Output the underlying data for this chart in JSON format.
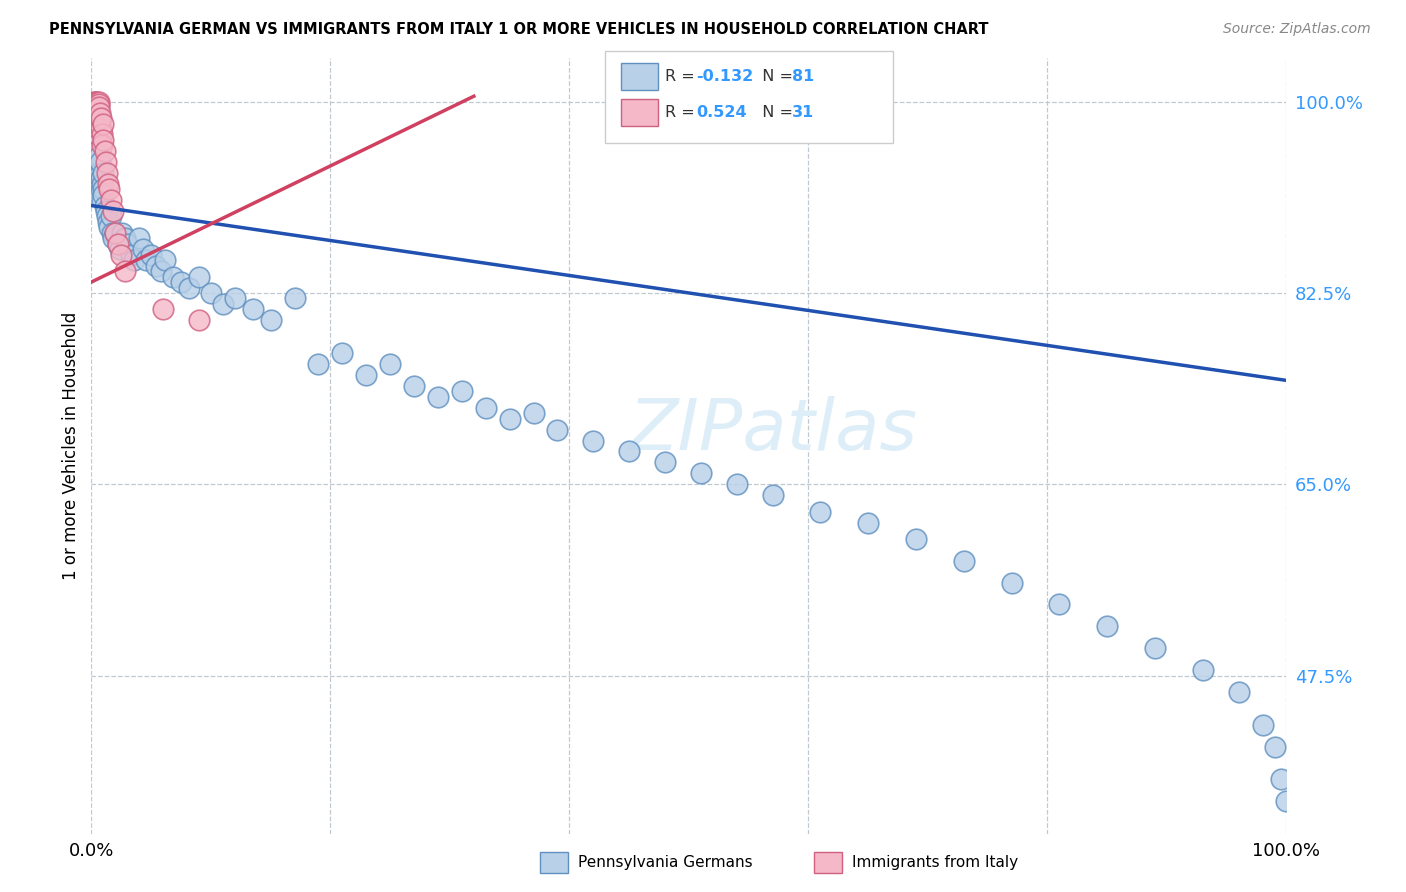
{
  "title": "PENNSYLVANIA GERMAN VS IMMIGRANTS FROM ITALY 1 OR MORE VEHICLES IN HOUSEHOLD CORRELATION CHART",
  "source": "Source: ZipAtlas.com",
  "ylabel": "1 or more Vehicles in Household",
  "ytick_vals": [
    1.0,
    0.825,
    0.65,
    0.475
  ],
  "ytick_labels": [
    "100.0%",
    "82.5%",
    "65.0%",
    "47.5%"
  ],
  "xtick_positions": [
    0.0,
    0.2,
    0.4,
    0.6,
    0.8,
    1.0
  ],
  "xtick_labels": [
    "0.0%",
    "",
    "",
    "",
    "",
    "100.0%"
  ],
  "xrange": [
    0.0,
    1.0
  ],
  "yrange": [
    0.33,
    1.04
  ],
  "blue_color": "#b8d0e8",
  "pink_color": "#f5b8c8",
  "blue_edge": "#6090c0",
  "pink_edge": "#d06080",
  "line_blue": "#2050b0",
  "line_pink": "#d04060",
  "blue_line_x0": 0.0,
  "blue_line_y0": 0.905,
  "blue_line_x1": 1.0,
  "blue_line_y1": 0.745,
  "pink_line_x0": 0.0,
  "pink_line_y0": 0.835,
  "pink_line_x1": 0.32,
  "pink_line_y1": 1.005,
  "watermark_text": "ZIPatlas",
  "legend_r_blue": "-0.132",
  "legend_n_blue": "81",
  "legend_r_pink": "0.524",
  "legend_n_pink": "31",
  "blue_pts_x": [
    0.002,
    0.003,
    0.004,
    0.004,
    0.005,
    0.005,
    0.006,
    0.006,
    0.007,
    0.007,
    0.008,
    0.008,
    0.009,
    0.009,
    0.01,
    0.01,
    0.01,
    0.011,
    0.012,
    0.013,
    0.014,
    0.015,
    0.016,
    0.017,
    0.018,
    0.02,
    0.022,
    0.024,
    0.026,
    0.028,
    0.03,
    0.033,
    0.036,
    0.04,
    0.043,
    0.046,
    0.05,
    0.054,
    0.058,
    0.062,
    0.068,
    0.075,
    0.082,
    0.09,
    0.1,
    0.11,
    0.12,
    0.135,
    0.15,
    0.17,
    0.19,
    0.21,
    0.23,
    0.25,
    0.27,
    0.29,
    0.31,
    0.33,
    0.35,
    0.37,
    0.39,
    0.42,
    0.45,
    0.48,
    0.51,
    0.54,
    0.57,
    0.61,
    0.65,
    0.69,
    0.73,
    0.77,
    0.81,
    0.85,
    0.89,
    0.93,
    0.96,
    0.98,
    0.99,
    0.995,
    1.0
  ],
  "blue_pts_y": [
    0.94,
    0.935,
    0.95,
    0.96,
    0.945,
    0.955,
    0.94,
    0.95,
    0.935,
    0.945,
    0.93,
    0.92,
    0.925,
    0.91,
    0.935,
    0.92,
    0.915,
    0.905,
    0.9,
    0.895,
    0.89,
    0.885,
    0.895,
    0.88,
    0.875,
    0.88,
    0.87,
    0.865,
    0.88,
    0.875,
    0.87,
    0.86,
    0.855,
    0.875,
    0.865,
    0.855,
    0.86,
    0.85,
    0.845,
    0.855,
    0.84,
    0.835,
    0.83,
    0.84,
    0.825,
    0.815,
    0.82,
    0.81,
    0.8,
    0.82,
    0.76,
    0.77,
    0.75,
    0.76,
    0.74,
    0.73,
    0.735,
    0.72,
    0.71,
    0.715,
    0.7,
    0.69,
    0.68,
    0.67,
    0.66,
    0.65,
    0.64,
    0.625,
    0.615,
    0.6,
    0.58,
    0.56,
    0.54,
    0.52,
    0.5,
    0.48,
    0.46,
    0.43,
    0.41,
    0.38,
    0.36
  ],
  "pink_pts_x": [
    0.002,
    0.003,
    0.003,
    0.004,
    0.004,
    0.005,
    0.005,
    0.006,
    0.006,
    0.006,
    0.007,
    0.007,
    0.008,
    0.008,
    0.009,
    0.009,
    0.01,
    0.01,
    0.011,
    0.012,
    0.013,
    0.014,
    0.015,
    0.016,
    0.018,
    0.02,
    0.022,
    0.025,
    0.028,
    0.06,
    0.09
  ],
  "pink_pts_y": [
    1.0,
    1.0,
    0.995,
    1.0,
    0.998,
    1.0,
    0.995,
    1.0,
    0.998,
    0.995,
    0.985,
    0.99,
    0.975,
    0.985,
    0.97,
    0.96,
    0.98,
    0.965,
    0.955,
    0.945,
    0.935,
    0.925,
    0.92,
    0.91,
    0.9,
    0.88,
    0.87,
    0.86,
    0.845,
    0.81,
    0.8
  ]
}
